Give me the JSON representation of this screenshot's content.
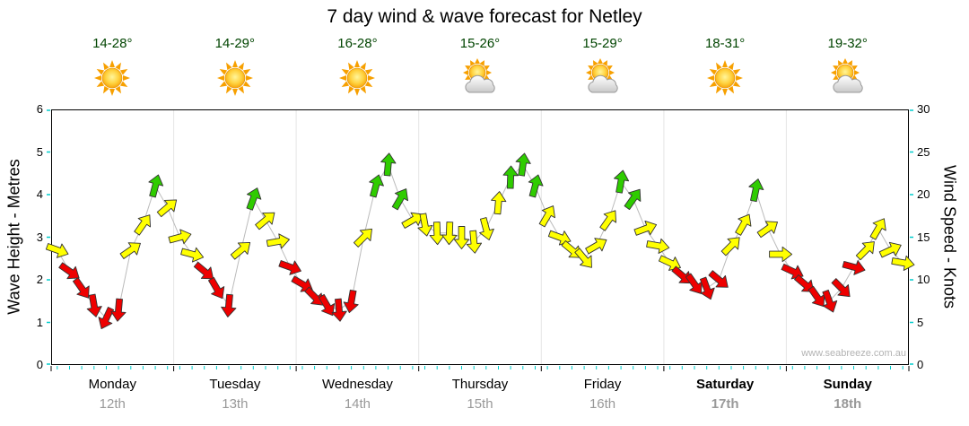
{
  "chart_data": {
    "type": "wind-forecast",
    "title": "7 day wind & wave forecast for Netley",
    "watermark": "www.seabreeze.com.au",
    "left_axis": {
      "label": "Wave Height - Metres",
      "min": 0,
      "max": 6,
      "ticks": [
        0,
        1,
        2,
        3,
        4,
        5,
        6
      ]
    },
    "right_axis": {
      "label": "Wind Speed - Knots",
      "min": 0,
      "max": 30,
      "ticks": [
        0,
        5,
        10,
        15,
        20,
        25,
        30
      ]
    },
    "days": [
      {
        "name": "Monday",
        "date": "12th",
        "temp": "14-28°",
        "icon": "sunny",
        "bold": false
      },
      {
        "name": "Tuesday",
        "date": "13th",
        "temp": "14-29°",
        "icon": "sunny",
        "bold": false
      },
      {
        "name": "Wednesday",
        "date": "14th",
        "temp": "16-28°",
        "icon": "sunny",
        "bold": false
      },
      {
        "name": "Thursday",
        "date": "15th",
        "temp": "15-26°",
        "icon": "partly-cloudy",
        "bold": false
      },
      {
        "name": "Friday",
        "date": "16th",
        "temp": "15-29°",
        "icon": "partly-cloudy",
        "bold": false
      },
      {
        "name": "Saturday",
        "date": "17th",
        "temp": "18-31°",
        "icon": "sunny",
        "bold": true
      },
      {
        "name": "Sunday",
        "date": "18th",
        "temp": "19-32°",
        "icon": "partly-cloudy",
        "bold": true
      }
    ],
    "colors": {
      "red": "#EE0000",
      "yellow": "#FFFF00",
      "green": "#2FCC00",
      "tick": "#00CCCC",
      "line": "#BBBBBB",
      "grid": "#E5E5E5",
      "temp": "#004400",
      "date": "#999999",
      "watermark": "#B3B3B3"
    },
    "points": {
      "knots": [
        13.5,
        11,
        9,
        7,
        5.5,
        6.5,
        13.5,
        16.5,
        21,
        18.5,
        15,
        13,
        11,
        9,
        7,
        13.5,
        19.5,
        17,
        14.5,
        11.5,
        9.5,
        8,
        7,
        6.5,
        7.5,
        15,
        21,
        23.5,
        19.5,
        17,
        16.5,
        15.5,
        15.5,
        15,
        14.5,
        16,
        19,
        22,
        23.5,
        21,
        17.5,
        15,
        13.5,
        12.5,
        14,
        17,
        21.5,
        19.5,
        16,
        14,
        12,
        10.5,
        9.5,
        9,
        10,
        14,
        16.5,
        20.5,
        16,
        13,
        11,
        9.5,
        8,
        7.5,
        9,
        11.5,
        13.5,
        16,
        13.5,
        12
      ],
      "colors": [
        "y",
        "r",
        "r",
        "r",
        "r",
        "r",
        "y",
        "y",
        "g",
        "y",
        "y",
        "y",
        "r",
        "r",
        "r",
        "y",
        "g",
        "y",
        "y",
        "r",
        "r",
        "r",
        "r",
        "r",
        "r",
        "y",
        "g",
        "g",
        "g",
        "y",
        "y",
        "y",
        "y",
        "y",
        "y",
        "y",
        "y",
        "g",
        "g",
        "g",
        "y",
        "y",
        "y",
        "y",
        "y",
        "y",
        "g",
        "g",
        "y",
        "y",
        "y",
        "r",
        "r",
        "r",
        "r",
        "y",
        "y",
        "g",
        "y",
        "y",
        "r",
        "r",
        "r",
        "r",
        "r",
        "r",
        "y",
        "y",
        "y",
        "y"
      ],
      "dirs_deg": [
        20,
        35,
        55,
        80,
        115,
        95,
        -35,
        -55,
        -75,
        -40,
        -15,
        15,
        40,
        60,
        95,
        -40,
        -70,
        -40,
        -10,
        20,
        30,
        45,
        60,
        85,
        100,
        -45,
        -75,
        -85,
        -60,
        -30,
        80,
        88,
        92,
        90,
        85,
        75,
        -85,
        -88,
        -82,
        -75,
        -60,
        20,
        40,
        50,
        -30,
        -55,
        -80,
        -55,
        -20,
        10,
        25,
        40,
        55,
        70,
        40,
        -45,
        -60,
        -78,
        -35,
        0,
        25,
        40,
        55,
        70,
        45,
        15,
        -45,
        -60,
        -25,
        10
      ]
    }
  }
}
